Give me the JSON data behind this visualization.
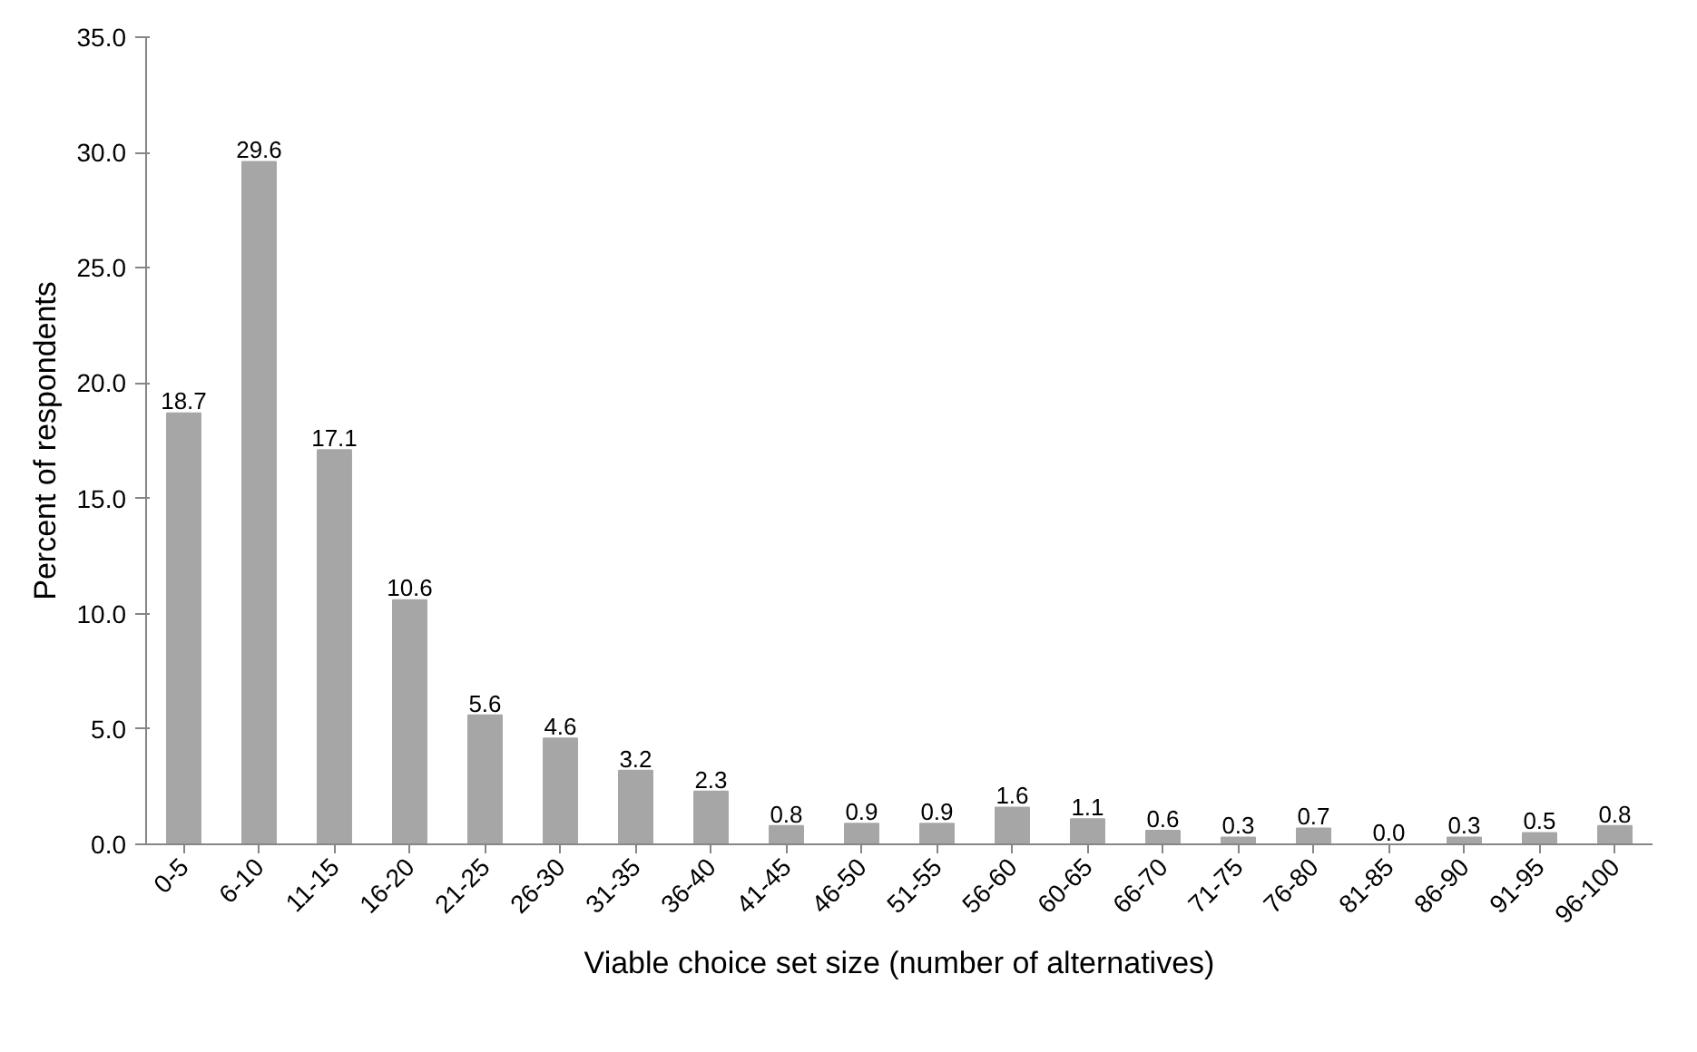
{
  "chart_data": {
    "type": "bar",
    "xlabel": "Viable choice set size (number of alternatives)",
    "ylabel": "Percent of respondents",
    "categories": [
      "0-5",
      "6-10",
      "11-15",
      "16-20",
      "21-25",
      "26-30",
      "31-35",
      "36-40",
      "41-45",
      "46-50",
      "51-55",
      "56-60",
      "60-65",
      "66-70",
      "71-75",
      "76-80",
      "81-85",
      "86-90",
      "91-95",
      "96-100"
    ],
    "values": [
      18.7,
      29.6,
      17.1,
      10.6,
      5.6,
      4.6,
      3.2,
      2.3,
      0.8,
      0.9,
      0.9,
      1.6,
      1.1,
      0.6,
      0.3,
      0.7,
      0.0,
      0.3,
      0.5,
      0.8
    ],
    "value_labels": [
      "18.7",
      "29.6",
      "17.1",
      "10.6",
      "5.6",
      "4.6",
      "3.2",
      "2.3",
      "0.8",
      "0.9",
      "0.9",
      "1.6",
      "1.1",
      "0.6",
      "0.3",
      "0.7",
      "0.0",
      "0.3",
      "0.5",
      "0.8"
    ],
    "color": "#a6a6a6",
    "ylim": [
      0,
      35
    ],
    "yticks": [
      {
        "value": 0,
        "label": "0.0"
      },
      {
        "value": 5,
        "label": "5.0"
      },
      {
        "value": 10,
        "label": "10.0"
      },
      {
        "value": 15,
        "label": "15.0"
      },
      {
        "value": 20,
        "label": "20.0"
      },
      {
        "value": 25,
        "label": "25.0"
      },
      {
        "value": 30,
        "label": "30.0"
      },
      {
        "value": 35,
        "label": "35.0"
      }
    ],
    "grid": false
  }
}
